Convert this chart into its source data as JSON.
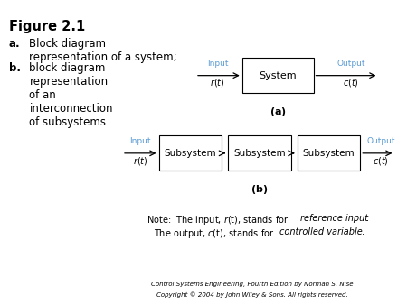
{
  "title": "Figure 2.1",
  "label_color": "#5b9bd5",
  "box_color": "#000000",
  "background_color": "#ffffff",
  "copyright_line1": "Control Systems Engineering, Fourth Edition by Norman S. Nise",
  "copyright_line2": "Copyright © 2004 by John Wiley & Sons. All rights reserved.",
  "figsize": [
    4.5,
    3.38
  ],
  "dpi": 100
}
